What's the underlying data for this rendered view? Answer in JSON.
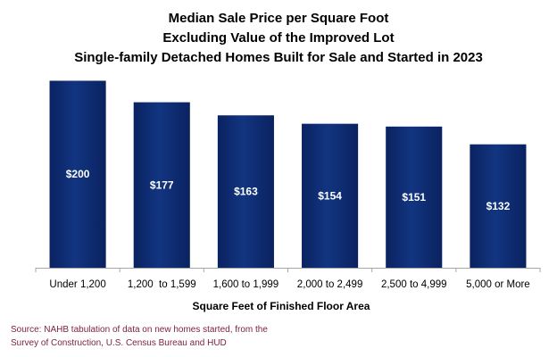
{
  "chart_data": {
    "type": "bar",
    "title_lines": [
      "Median Sale Price per Square Foot",
      "Excluding Value of the Improved Lot",
      "Single-family Detached Homes Built for Sale and Started in 2023"
    ],
    "categories": [
      "Under 1,200",
      "1,200  to 1,599",
      "1,600 to 1,999",
      "2,000 to 2,499",
      "2,500 to 4,999",
      "5,000 or More"
    ],
    "values": [
      200,
      177,
      163,
      154,
      151,
      132
    ],
    "value_labels": [
      "$200",
      "$177",
      "$163",
      "$154",
      "$151",
      "$132"
    ],
    "xlabel": "Square Feet of Finished Floor Area",
    "ylabel": "",
    "ylim": [
      0,
      210
    ],
    "grid": false,
    "colors": {
      "bar": "#0d2a6e",
      "bar_highlight": "#1d4a9c",
      "axis": "#a6a6a6",
      "label_text": "#ffffff",
      "source_text": "#7a1f3d"
    }
  },
  "source": {
    "line1": "Source: NAHB tabulation of data on new homes started, from the",
    "line2": "Survey of Construction, U.S. Census Bureau and HUD"
  }
}
